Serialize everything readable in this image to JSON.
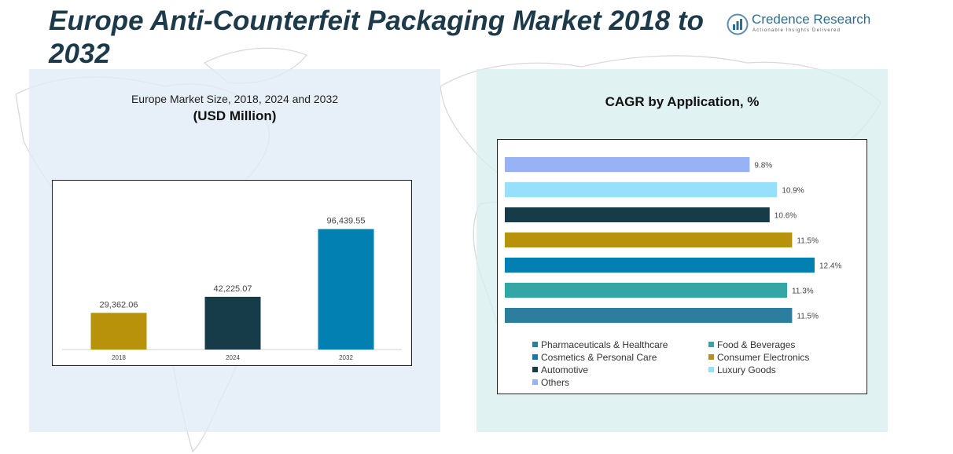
{
  "title": "Europe Anti-Counterfeit Packaging Market 2018 to 2032",
  "logo": {
    "name": "Credence Research",
    "tagline": "Actionable Insights Delivered"
  },
  "left_panel": {
    "title_line1": "Europe Market Size, 2018, 2024 and 2032",
    "title_line2": "(USD Million)"
  },
  "right_panel": {
    "title": "CAGR by Application, %"
  },
  "colors": {
    "title": "#1d3a4a",
    "brand": "#2c6e8f"
  },
  "chart_data": [
    {
      "type": "bar",
      "title": "Europe Market Size, 2018, 2024 and 2032 (USD Million)",
      "categories": [
        "2018",
        "2024",
        "2032"
      ],
      "values": [
        29362.06,
        42225.07,
        96439.55
      ],
      "value_labels": [
        "29,362.06",
        "42,225.07",
        "96,439.55"
      ],
      "colors": [
        "#b8920a",
        "#163c4a",
        "#0280b2"
      ],
      "ylim": [
        0,
        100000
      ],
      "xlabel": "",
      "ylabel": "",
      "grid": false
    },
    {
      "type": "bar",
      "orientation": "horizontal",
      "title": "CAGR by Application, %",
      "categories": [
        "Others",
        "Luxury Goods",
        "Automotive",
        "Consumer Electronics",
        "Cosmetics & Personal Care",
        "Food & Beverages",
        "Pharmaceuticals & Healthcare"
      ],
      "values": [
        9.8,
        10.9,
        10.6,
        11.5,
        12.4,
        11.3,
        11.5
      ],
      "value_labels": [
        "9.8%",
        "10.9%",
        "10.6%",
        "11.5%",
        "12.4%",
        "11.3%",
        "11.5%"
      ],
      "colors": [
        "#97b3f5",
        "#97e0fb",
        "#163c4a",
        "#b8920a",
        "#0280b2",
        "#35a6a6",
        "#2d7da0"
      ],
      "xlim": [
        0,
        12.4
      ],
      "grid": false,
      "legend": {
        "position": "bottom",
        "entries": [
          {
            "label": "Pharmaceuticals & Healthcare",
            "color": "#2d7da0"
          },
          {
            "label": "Food & Beverages",
            "color": "#35a6a6"
          },
          {
            "label": "Cosmetics & Personal Care",
            "color": "#0280b2"
          },
          {
            "label": "Consumer Electronics",
            "color": "#b8920a"
          },
          {
            "label": "Automotive",
            "color": "#163c4a"
          },
          {
            "label": "Luxury Goods",
            "color": "#97e0fb"
          },
          {
            "label": "Others",
            "color": "#97b3f5"
          }
        ]
      }
    }
  ]
}
